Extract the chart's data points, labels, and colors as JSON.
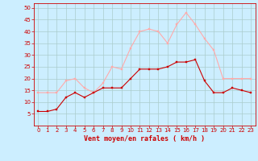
{
  "x": [
    0,
    1,
    2,
    3,
    4,
    5,
    6,
    7,
    8,
    9,
    10,
    11,
    12,
    13,
    14,
    15,
    16,
    17,
    18,
    19,
    20,
    21,
    22,
    23
  ],
  "wind_avg": [
    6,
    6,
    7,
    12,
    14,
    12,
    14,
    16,
    16,
    16,
    20,
    24,
    24,
    24,
    25,
    27,
    27,
    28,
    19,
    14,
    14,
    16,
    15,
    14
  ],
  "wind_gust": [
    14,
    14,
    14,
    19,
    20,
    16,
    14,
    18,
    25,
    24,
    33,
    40,
    41,
    40,
    35,
    43,
    48,
    43,
    37,
    32,
    20,
    20,
    20,
    20
  ],
  "avg_color": "#cc0000",
  "gust_color": "#ffaaaa",
  "bg_color": "#cceeff",
  "grid_color": "#aacccc",
  "xlabel": "Vent moyen/en rafales ( km/h )",
  "ylim": [
    0,
    52
  ],
  "xlim": [
    -0.5,
    23.5
  ],
  "yticks": [
    5,
    10,
    15,
    20,
    25,
    30,
    35,
    40,
    45,
    50
  ],
  "xticks": [
    0,
    1,
    2,
    3,
    4,
    5,
    6,
    7,
    8,
    9,
    10,
    11,
    12,
    13,
    14,
    15,
    16,
    17,
    18,
    19,
    20,
    21,
    22,
    23
  ],
  "marker_size": 2.0,
  "linewidth": 0.8,
  "tick_fontsize": 5,
  "xlabel_fontsize": 6
}
